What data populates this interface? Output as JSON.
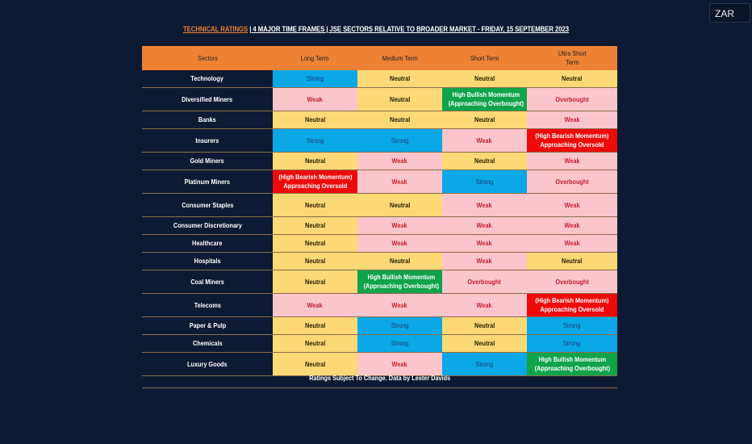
{
  "ticker": "ZAR",
  "title": {
    "prefix": "TECHNICAL RATINGS",
    "rest": "| 4 MAJOR TIME FRAMES | JSE SECTORS RELATIVE TO BROADER MARKET - FRIDAY, 15 SEPTEMBER 2023"
  },
  "headers": [
    "Sectors",
    "Long Term",
    "Medium Term",
    "Short Term",
    "Ultra Short\nTerm"
  ],
  "rows": [
    {
      "sector": "Technology",
      "cells": [
        "Strong",
        "Neutral",
        "Neutral",
        "Neutral"
      ]
    },
    {
      "sector": "Diversified Miners",
      "cells": [
        "Weak",
        "Neutral",
        "High Bullish Momentum\n(Approaching Overbought)",
        "Overbought"
      ]
    },
    {
      "sector": "Banks",
      "cells": [
        "Neutral",
        "Neutral",
        "Neutral",
        "Weak"
      ]
    },
    {
      "sector": "Insurers",
      "cells": [
        "Strong",
        "Strong",
        "Weak",
        "(High Bearish Momentum)\nApproaching Oversold"
      ]
    },
    {
      "sector": "Gold Miners",
      "cells": [
        "Neutral",
        "Weak",
        "Neutral",
        "Weak"
      ]
    },
    {
      "sector": "Platinum Miners",
      "cells": [
        "(High Bearish Momentum)\nApproaching Oversold",
        "Weak",
        "Strong",
        "Overbought"
      ]
    },
    {
      "sector": "Consumer Staples",
      "cells": [
        "Neutral",
        "Neutral",
        "Weak",
        "Weak"
      ]
    },
    {
      "sector": "Consumer Discretionary",
      "cells": [
        "Neutral",
        "Weak",
        "Weak",
        "Weak"
      ]
    },
    {
      "sector": "Healthcare",
      "cells": [
        "Neutral",
        "Weak",
        "Weak",
        "Weak"
      ]
    },
    {
      "sector": "Hospitals",
      "cells": [
        "Neutral",
        "Neutral",
        "Weak",
        "Neutral"
      ]
    },
    {
      "sector": "Coal Miners",
      "cells": [
        "Neutral",
        "High Bullish Momentum\n(Approaching Overbought)",
        "Overbought",
        "Overbought"
      ]
    },
    {
      "sector": "Telecoms",
      "cells": [
        "Weak",
        "Weak",
        "Weak",
        "(High Bearish Momentum)\nApproaching Oversold"
      ]
    },
    {
      "sector": "Paper & Pulp",
      "cells": [
        "Neutral",
        "Strong",
        "Neutral",
        "Strong"
      ]
    },
    {
      "sector": "Chemicals",
      "cells": [
        "Neutral",
        "Strong",
        "Neutral",
        "Strong"
      ]
    },
    {
      "sector": "Luxury Goods",
      "cells": [
        "Neutral",
        "Weak",
        "Strong",
        "High Bullish Momentum\n(Approaching Overbought)"
      ]
    }
  ],
  "footer": "Ratings Subject To Change. Data by Lester Davids",
  "colors": {
    "background": "#0e1a33",
    "header": "#ee8234",
    "neutral": "#fcd876",
    "weak": "#fbc5cc",
    "strong": "#0aa8e6",
    "bullish": "#0fa34a",
    "bearish": "#ee0a0a"
  }
}
